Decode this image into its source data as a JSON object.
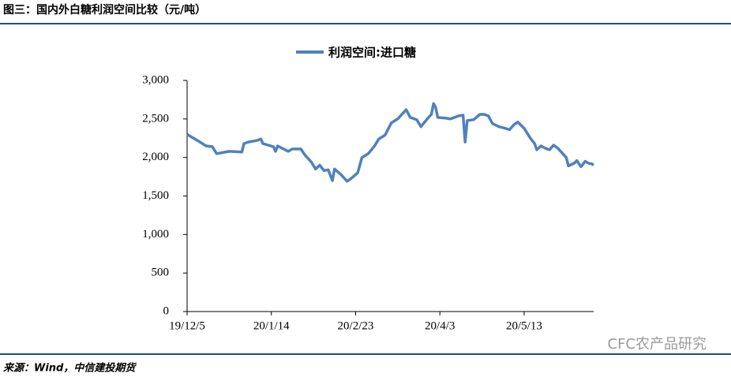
{
  "header": {
    "title": "图三：国内外白糖利润空间比较（元/吨）"
  },
  "chart_data": {
    "type": "line",
    "x": [
      "19/12/5",
      "19/12/10",
      "19/12/14",
      "19/12/17",
      "19/12/19",
      "19/12/25",
      "19/12/31",
      "20/1/1",
      "20/1/3",
      "20/1/7",
      "20/1/9",
      "20/1/10",
      "20/1/15",
      "20/1/16",
      "20/1/17",
      "20/1/22",
      "20/1/24",
      "20/1/28",
      "20/1/30",
      "20/2/2",
      "20/2/4",
      "20/2/6",
      "20/2/8",
      "20/2/10",
      "20/2/12",
      "20/2/13",
      "20/2/16",
      "20/2/19",
      "20/2/21",
      "20/2/24",
      "20/2/26",
      "20/2/29",
      "20/3/3",
      "20/3/5",
      "20/3/8",
      "20/3/11",
      "20/3/14",
      "20/3/17",
      "20/3/18",
      "20/3/20",
      "20/3/23",
      "20/3/25",
      "20/3/28",
      "20/3/30",
      "20/3/31",
      "20/4/1",
      "20/4/2",
      "20/4/6",
      "20/4/8",
      "20/4/12",
      "20/4/14",
      "20/4/15",
      "20/4/16",
      "20/4/19",
      "20/4/22",
      "20/4/24",
      "20/4/26",
      "20/4/28",
      "20/5/1",
      "20/5/4",
      "20/5/6",
      "20/5/8",
      "20/5/10",
      "20/5/13",
      "20/5/16",
      "20/5/18",
      "20/5/19",
      "20/5/21",
      "20/5/23",
      "20/5/25",
      "20/5/27",
      "20/5/29",
      "20/5/31",
      "20/6/2",
      "20/6/3",
      "20/6/6",
      "20/6/7",
      "20/6/9",
      "20/6/11",
      "20/6/13",
      "20/6/14",
      "20/6/15"
    ],
    "series": [
      {
        "name": "利润空间:进口糖",
        "color": "#4f81bd",
        "values": [
          2300,
          2220,
          2150,
          2140,
          2050,
          2080,
          2070,
          2180,
          2200,
          2220,
          2240,
          2180,
          2140,
          2080,
          2150,
          2080,
          2110,
          2110,
          2030,
          1940,
          1850,
          1900,
          1830,
          1840,
          1700,
          1850,
          1780,
          1690,
          1730,
          1800,
          2000,
          2050,
          2150,
          2240,
          2290,
          2450,
          2500,
          2590,
          2620,
          2520,
          2490,
          2400,
          2500,
          2560,
          2700,
          2650,
          2520,
          2510,
          2500,
          2540,
          2550,
          2200,
          2480,
          2490,
          2560,
          2560,
          2540,
          2440,
          2400,
          2380,
          2360,
          2420,
          2460,
          2380,
          2250,
          2180,
          2100,
          2150,
          2120,
          2100,
          2160,
          2120,
          2060,
          2000,
          1890,
          1930,
          1960,
          1880,
          1950,
          1920,
          1920,
          1900
        ]
      }
    ],
    "xlim": [
      "19/12/5",
      "20/6/15"
    ],
    "xticks": [
      "19/12/5",
      "20/1/14",
      "20/2/23",
      "20/4/3",
      "20/5/13"
    ],
    "ylim": [
      0,
      3000
    ],
    "yticks": [
      0,
      500,
      {
        "value": 1000,
        "label": "1,000"
      },
      {
        "value": 1500,
        "label": "1,500"
      },
      {
        "value": 2000,
        "label": "2,000"
      },
      {
        "value": 2500,
        "label": "2,500"
      },
      {
        "value": 3000,
        "label": "3,000"
      }
    ],
    "legend": "top"
  },
  "footer": {
    "source": "来源：Wind，中信建投期货",
    "watermark": "CFC农产品研究"
  }
}
